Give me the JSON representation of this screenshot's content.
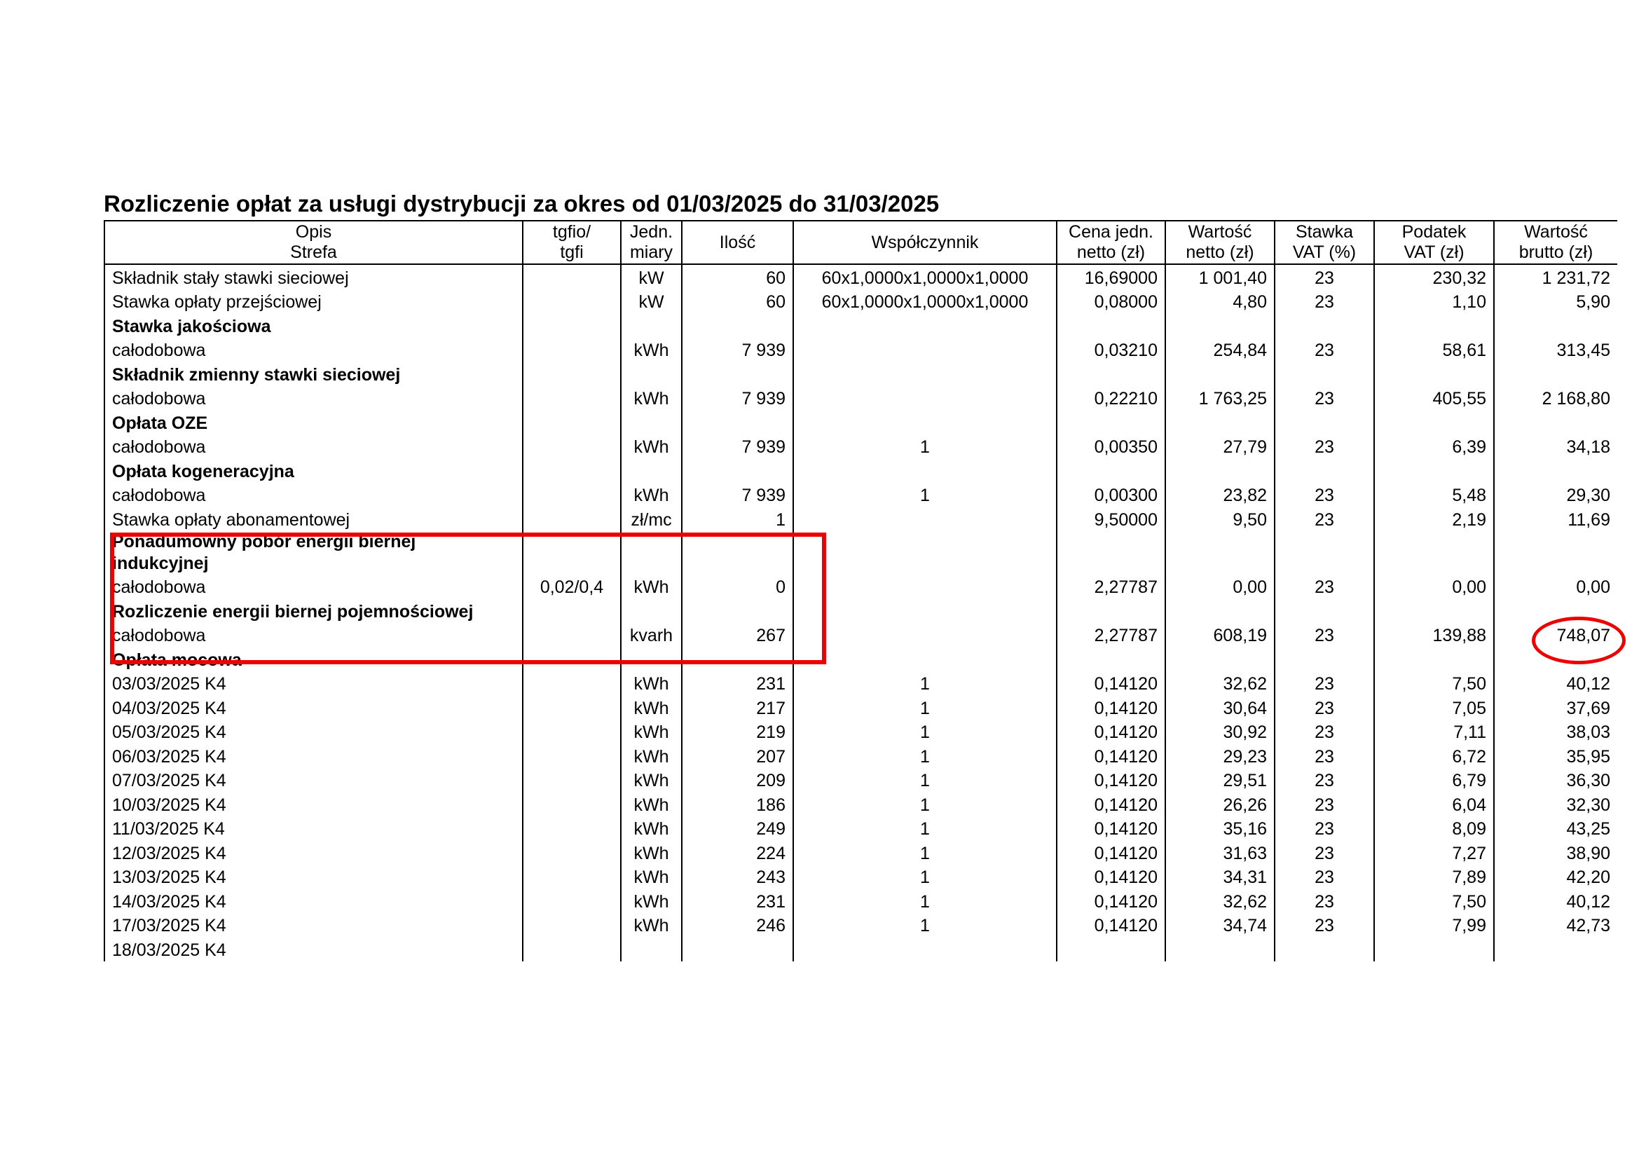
{
  "title": "Rozliczenie opłat za usługi dystrybucji za okres od 01/03/2025 do 31/03/2025",
  "table": {
    "header": [
      [
        "Opis",
        "Strefa"
      ],
      [
        "tgfio/",
        "tgfi"
      ],
      [
        "Jedn.",
        "miary"
      ],
      [
        "Ilość"
      ],
      [
        "Współczynnik"
      ],
      [
        "Cena jedn.",
        "netto (zł)"
      ],
      [
        "Wartość",
        "netto (zł)"
      ],
      [
        "Stawka",
        "VAT (%)"
      ],
      [
        "Podatek",
        "VAT (zł)"
      ],
      [
        "Wartość",
        "brutto (zł)"
      ]
    ],
    "rows": [
      {
        "cells": [
          "Składnik stały stawki sieciowej",
          null,
          "kW",
          "60",
          "60x1,0000x1,0000x1,0000",
          "16,69000",
          "1 001,40",
          "23",
          "230,32",
          "1 231,72"
        ]
      },
      {
        "cells": [
          "Stawka opłaty przejściowej",
          null,
          "kW",
          "60",
          "60x1,0000x1,0000x1,0000",
          "0,08000",
          "4,80",
          "23",
          "1,10",
          "5,90"
        ]
      },
      {
        "cells": [
          "Stawka jakościowa"
        ],
        "bold": true
      },
      {
        "cells": [
          "całodobowa",
          null,
          "kWh",
          "7 939",
          null,
          "0,03210",
          "254,84",
          "23",
          "58,61",
          "313,45"
        ]
      },
      {
        "cells": [
          "Składnik zmienny stawki sieciowej"
        ],
        "bold": true
      },
      {
        "cells": [
          "całodobowa",
          null,
          "kWh",
          "7 939",
          null,
          "0,22210",
          "1 763,25",
          "23",
          "405,55",
          "2 168,80"
        ]
      },
      {
        "cells": [
          "Opłata OZE"
        ],
        "bold": true
      },
      {
        "cells": [
          "całodobowa",
          null,
          "kWh",
          "7 939",
          "1",
          "0,00350",
          "27,79",
          "23",
          "6,39",
          "34,18"
        ]
      },
      {
        "cells": [
          "Opłata kogeneracyjna"
        ],
        "bold": true
      },
      {
        "cells": [
          "całodobowa",
          null,
          "kWh",
          "7 939",
          "1",
          "0,00300",
          "23,82",
          "23",
          "5,48",
          "29,30"
        ]
      },
      {
        "cells": [
          "Stawka opłaty abonamentowej",
          null,
          "zł/mc",
          "1",
          null,
          "9,50000",
          "9,50",
          "23",
          "2,19",
          "11,69"
        ]
      },
      {
        "cells": [
          "Ponadumowny pobór energii biernej indukcyjnej"
        ],
        "bold": true
      },
      {
        "cells": [
          "całodobowa",
          "0,02/0,4",
          "kWh",
          "0",
          null,
          "2,27787",
          "0,00",
          "23",
          "0,00",
          "0,00"
        ]
      },
      {
        "cells": [
          "Rozliczenie energii biernej pojemnościowej"
        ],
        "bold": true
      },
      {
        "cells": [
          "całodobowa",
          null,
          "kvarh",
          "267",
          null,
          "2,27787",
          "608,19",
          "23",
          "139,88",
          "748,07"
        ]
      },
      {
        "cells": [
          "Opłata mocowa"
        ],
        "bold": true
      },
      {
        "cells": [
          "03/03/2025 K4",
          null,
          "kWh",
          "231",
          "1",
          "0,14120",
          "32,62",
          "23",
          "7,50",
          "40,12"
        ]
      },
      {
        "cells": [
          "04/03/2025 K4",
          null,
          "kWh",
          "217",
          "1",
          "0,14120",
          "30,64",
          "23",
          "7,05",
          "37,69"
        ]
      },
      {
        "cells": [
          "05/03/2025 K4",
          null,
          "kWh",
          "219",
          "1",
          "0,14120",
          "30,92",
          "23",
          "7,11",
          "38,03"
        ]
      },
      {
        "cells": [
          "06/03/2025 K4",
          null,
          "kWh",
          "207",
          "1",
          "0,14120",
          "29,23",
          "23",
          "6,72",
          "35,95"
        ]
      },
      {
        "cells": [
          "07/03/2025 K4",
          null,
          "kWh",
          "209",
          "1",
          "0,14120",
          "29,51",
          "23",
          "6,79",
          "36,30"
        ]
      },
      {
        "cells": [
          "10/03/2025 K4",
          null,
          "kWh",
          "186",
          "1",
          "0,14120",
          "26,26",
          "23",
          "6,04",
          "32,30"
        ]
      },
      {
        "cells": [
          "11/03/2025 K4",
          null,
          "kWh",
          "249",
          "1",
          "0,14120",
          "35,16",
          "23",
          "8,09",
          "43,25"
        ]
      },
      {
        "cells": [
          "12/03/2025 K4",
          null,
          "kWh",
          "224",
          "1",
          "0,14120",
          "31,63",
          "23",
          "7,27",
          "38,90"
        ]
      },
      {
        "cells": [
          "13/03/2025 K4",
          null,
          "kWh",
          "243",
          "1",
          "0,14120",
          "34,31",
          "23",
          "7,89",
          "42,20"
        ]
      },
      {
        "cells": [
          "14/03/2025 K4",
          null,
          "kWh",
          "231",
          "1",
          "0,14120",
          "32,62",
          "23",
          "7,50",
          "40,12"
        ]
      },
      {
        "cells": [
          "17/03/2025 K4",
          null,
          "kWh",
          "246",
          "1",
          "0,14120",
          "34,74",
          "23",
          "7,99",
          "42,73"
        ]
      },
      {
        "cells": [
          "18/03/2025 K4"
        ]
      }
    ]
  }
}
